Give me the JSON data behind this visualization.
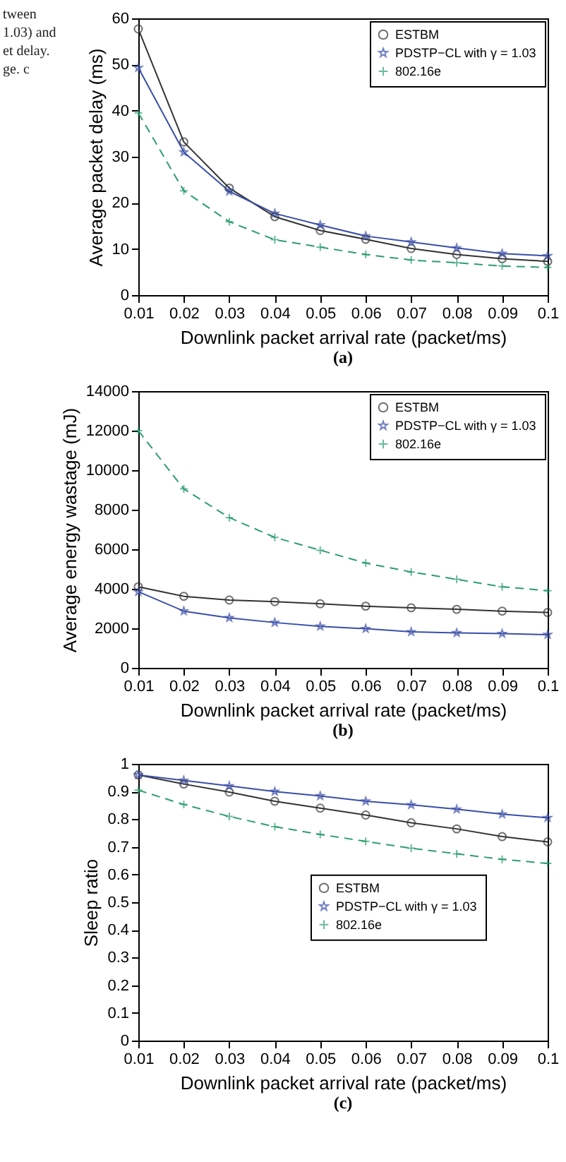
{
  "chart_data": [
    {
      "type": "line",
      "title": "(a)",
      "annotations": [
        "tween",
        "1.03) and",
        "et delay.",
        "ge. c"
      ],
      "xlabel": "Downlink packet arrival rate (packet/ms)",
      "ylabel": "Average packet delay (ms)",
      "x": [
        0.01,
        0.02,
        0.03,
        0.04,
        0.05,
        0.06,
        0.07,
        0.08,
        0.09,
        0.1
      ],
      "xlim": [
        0.01,
        0.1
      ],
      "xticks": [
        0.01,
        0.02,
        0.03,
        0.04,
        0.05,
        0.06,
        0.07,
        0.08,
        0.09,
        0.1
      ],
      "ylim": [
        0,
        60
      ],
      "yticks": [
        0,
        10,
        20,
        30,
        40,
        50,
        60
      ],
      "legend": "top right",
      "grid": false,
      "series": [
        {
          "name": "ESTBM",
          "color": "#333333",
          "marker": "circle",
          "line_style": "solid",
          "values": [
            57.7,
            33.2,
            23.2,
            17.0,
            14.0,
            12.1,
            10.1,
            8.8,
            7.9,
            7.3
          ]
        },
        {
          "name": "PDSTP−CL with γ = 1.03",
          "color": "#3b4fa8",
          "marker": "star",
          "line_style": "solid",
          "values": [
            49.3,
            31.0,
            22.5,
            17.7,
            15.2,
            12.8,
            11.5,
            10.2,
            9.0,
            8.5
          ]
        },
        {
          "name": "802.16e",
          "color": "#2e9e6e",
          "marker": "cross",
          "line_style": "dashed",
          "values": [
            39.5,
            22.6,
            15.9,
            12.0,
            10.4,
            8.8,
            7.6,
            7.0,
            6.3,
            6.0
          ]
        }
      ]
    },
    {
      "type": "line",
      "title": "(b)",
      "xlabel": "Downlink packet arrival rate (packet/ms)",
      "ylabel": "Average energy wastage (mJ)",
      "x": [
        0.01,
        0.02,
        0.03,
        0.04,
        0.05,
        0.06,
        0.07,
        0.08,
        0.09,
        0.1
      ],
      "xlim": [
        0.01,
        0.1
      ],
      "xticks": [
        0.01,
        0.02,
        0.03,
        0.04,
        0.05,
        0.06,
        0.07,
        0.08,
        0.09,
        0.1
      ],
      "ylim": [
        0,
        14000
      ],
      "yticks": [
        0,
        2000,
        4000,
        6000,
        8000,
        10000,
        12000,
        14000
      ],
      "legend": "top right",
      "grid": false,
      "series": [
        {
          "name": "ESTBM",
          "color": "#333333",
          "marker": "circle",
          "line_style": "solid",
          "values": [
            4100,
            3620,
            3430,
            3350,
            3240,
            3120,
            3040,
            2960,
            2870,
            2800
          ]
        },
        {
          "name": "PDSTP−CL with γ = 1.03",
          "color": "#3b4fa8",
          "marker": "star",
          "line_style": "solid",
          "values": [
            3850,
            2870,
            2530,
            2290,
            2100,
            1980,
            1820,
            1770,
            1730,
            1680
          ]
        },
        {
          "name": "802.16e",
          "color": "#2e9e6e",
          "marker": "cross",
          "line_style": "dashed",
          "values": [
            12000,
            9050,
            7600,
            6600,
            5950,
            5300,
            4850,
            4480,
            4100,
            3900
          ]
        }
      ]
    },
    {
      "type": "line",
      "title": "(c)",
      "xlabel": "Downlink packet arrival rate (packet/ms)",
      "ylabel": "Sleep ratio",
      "x": [
        0.01,
        0.02,
        0.03,
        0.04,
        0.05,
        0.06,
        0.07,
        0.08,
        0.09,
        0.1
      ],
      "xlim": [
        0.01,
        0.1
      ],
      "xticks": [
        0.01,
        0.02,
        0.03,
        0.04,
        0.05,
        0.06,
        0.07,
        0.08,
        0.09,
        0.1
      ],
      "ylim": [
        0,
        1
      ],
      "yticks": [
        0,
        0.1,
        0.2,
        0.3,
        0.4,
        0.5,
        0.6,
        0.7,
        0.8,
        0.9,
        1
      ],
      "legend": "right",
      "grid": false,
      "series": [
        {
          "name": "ESTBM",
          "color": "#333333",
          "marker": "circle",
          "line_style": "solid",
          "values": [
            0.96,
            0.927,
            0.898,
            0.865,
            0.84,
            0.815,
            0.787,
            0.765,
            0.737,
            0.718
          ]
        },
        {
          "name": "PDSTP−CL with γ = 1.03",
          "color": "#3b4fa8",
          "marker": "star",
          "line_style": "solid",
          "values": [
            0.96,
            0.94,
            0.92,
            0.9,
            0.884,
            0.865,
            0.852,
            0.836,
            0.818,
            0.805
          ]
        },
        {
          "name": "802.16e",
          "color": "#2e9e6e",
          "marker": "cross",
          "line_style": "dashed",
          "values": [
            0.905,
            0.853,
            0.81,
            0.773,
            0.745,
            0.72,
            0.695,
            0.675,
            0.655,
            0.64
          ]
        }
      ]
    }
  ]
}
